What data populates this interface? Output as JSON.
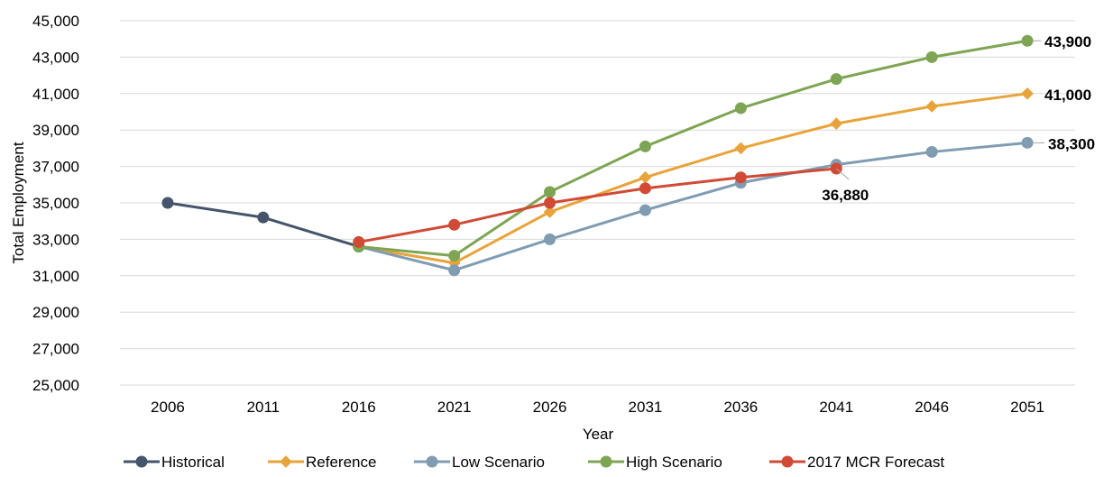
{
  "chart_data": {
    "type": "line",
    "title": "",
    "xlabel": "Year",
    "ylabel": "Total Employment",
    "ylim": [
      25000,
      45000
    ],
    "yticks": [
      25000,
      27000,
      29000,
      31000,
      33000,
      35000,
      37000,
      39000,
      41000,
      43000,
      45000
    ],
    "ytick_labels": [
      "25,000",
      "27,000",
      "29,000",
      "31,000",
      "33,000",
      "35,000",
      "37,000",
      "39,000",
      "41,000",
      "43,000",
      "45,000"
    ],
    "categories": [
      "2006",
      "2011",
      "2016",
      "2021",
      "2026",
      "2031",
      "2036",
      "2041",
      "2046",
      "2051"
    ],
    "grid": true,
    "legend": "bottom",
    "series": [
      {
        "name": "Historical",
        "color": "#44546a",
        "marker": "circle",
        "values": [
          35000,
          34200,
          32600,
          null,
          null,
          null,
          null,
          null,
          null,
          null
        ]
      },
      {
        "name": "Reference",
        "color": "#e8a33b",
        "marker": "diamond",
        "values": [
          null,
          null,
          32600,
          31700,
          34500,
          36400,
          38000,
          39350,
          40300,
          41000
        ]
      },
      {
        "name": "Low Scenario",
        "color": "#7f9cb1",
        "marker": "circle",
        "values": [
          null,
          null,
          32600,
          31300,
          33000,
          34600,
          36100,
          37100,
          37800,
          38300
        ]
      },
      {
        "name": "High Scenario",
        "color": "#7ea553",
        "marker": "circle",
        "values": [
          null,
          null,
          32600,
          32100,
          35600,
          38100,
          40200,
          41800,
          43000,
          43900
        ]
      },
      {
        "name": "2017 MCR Forecast",
        "color": "#d04a35",
        "marker": "circle",
        "values": [
          null,
          null,
          32850,
          33800,
          35000,
          35800,
          36400,
          36880,
          null,
          null
        ]
      }
    ],
    "annotations": [
      {
        "text": "43,900",
        "series": "High Scenario",
        "category": "2051"
      },
      {
        "text": "41,000",
        "series": "Reference",
        "category": "2051"
      },
      {
        "text": "38,300",
        "series": "Low Scenario",
        "category": "2051"
      },
      {
        "text": "36,880",
        "series": "2017 MCR Forecast",
        "category": "2041"
      }
    ]
  }
}
